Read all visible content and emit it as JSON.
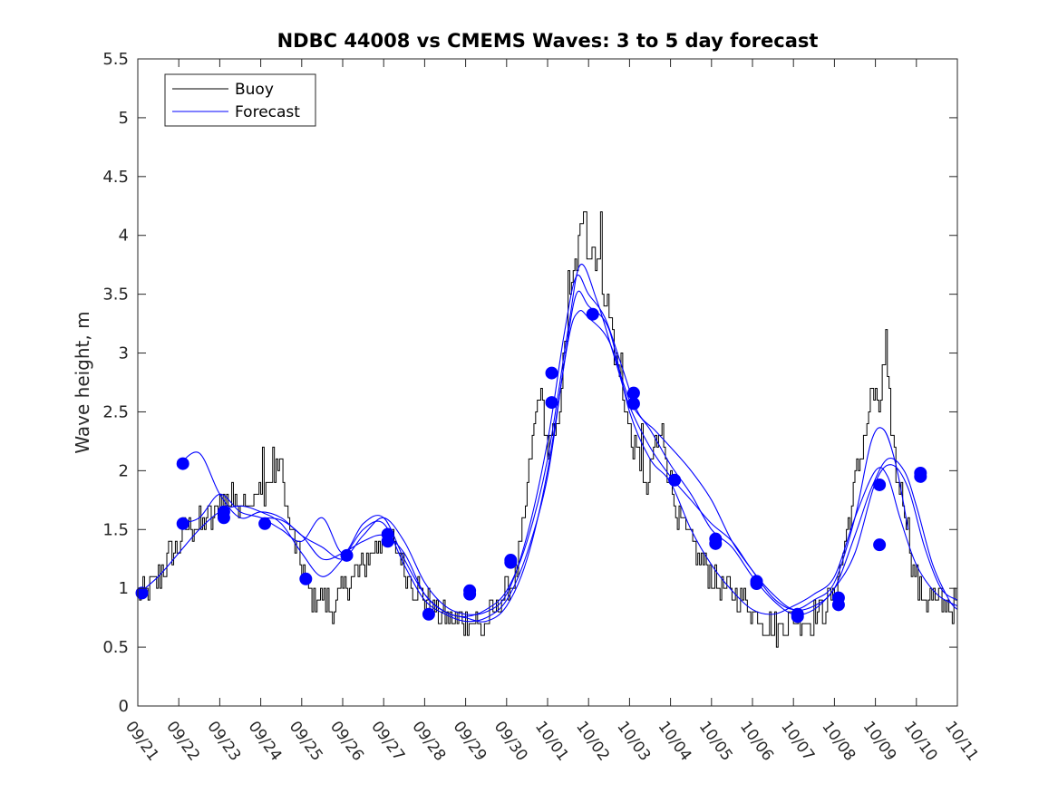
{
  "chart_data": {
    "type": "line",
    "title": "NDBC 44008 vs CMEMS Waves: 3 to 5 day forecast",
    "xlabel": "",
    "ylabel": "Wave height, m",
    "ylim": [
      0,
      5.5
    ],
    "xlim": [
      0,
      20
    ],
    "yticks": [
      "0",
      "0.5",
      "1",
      "1.5",
      "2",
      "2.5",
      "3",
      "3.5",
      "4",
      "4.5",
      "5",
      "5.5"
    ],
    "xticks": [
      "09/21",
      "09/22",
      "09/23",
      "09/24",
      "09/25",
      "09/26",
      "09/27",
      "09/28",
      "09/29",
      "09/30",
      "10/01",
      "10/02",
      "10/03",
      "10/04",
      "10/05",
      "10/06",
      "10/07",
      "10/08",
      "10/09",
      "10/10",
      "10/11"
    ],
    "legend": {
      "position": "top-left",
      "entries": [
        "Buoy",
        "Forecast"
      ]
    },
    "colors": {
      "buoy": "#000000",
      "forecast": "#0000ff",
      "axis": "#262626"
    },
    "buoy_anchors": [
      [
        0.0,
        1.0
      ],
      [
        0.2,
        0.95
      ],
      [
        0.5,
        1.1
      ],
      [
        0.8,
        1.3
      ],
      [
        1.2,
        1.5
      ],
      [
        1.5,
        1.55
      ],
      [
        1.8,
        1.6
      ],
      [
        2.0,
        1.75
      ],
      [
        2.3,
        1.7
      ],
      [
        2.6,
        1.8
      ],
      [
        2.8,
        1.75
      ],
      [
        3.1,
        1.85
      ],
      [
        3.3,
        1.9
      ],
      [
        3.45,
        2.1
      ],
      [
        3.55,
        1.9
      ],
      [
        3.7,
        1.5
      ],
      [
        3.9,
        1.3
      ],
      [
        4.2,
        0.95
      ],
      [
        4.5,
        0.9
      ],
      [
        4.8,
        0.85
      ],
      [
        5.1,
        1.05
      ],
      [
        5.4,
        1.15
      ],
      [
        5.7,
        1.3
      ],
      [
        6.0,
        1.45
      ],
      [
        6.3,
        1.35
      ],
      [
        6.6,
        1.1
      ],
      [
        6.9,
        0.95
      ],
      [
        7.2,
        0.85
      ],
      [
        7.5,
        0.75
      ],
      [
        7.8,
        0.7
      ],
      [
        8.1,
        0.75
      ],
      [
        8.4,
        0.65
      ],
      [
        8.7,
        0.8
      ],
      [
        9.0,
        1.0
      ],
      [
        9.2,
        1.1
      ],
      [
        9.4,
        1.5
      ],
      [
        9.6,
        2.2
      ],
      [
        9.8,
        2.7
      ],
      [
        10.0,
        2.2
      ],
      [
        10.2,
        2.3
      ],
      [
        10.4,
        3.0
      ],
      [
        10.6,
        3.6
      ],
      [
        10.8,
        4.0
      ],
      [
        11.0,
        3.9
      ],
      [
        11.2,
        3.85
      ],
      [
        11.4,
        3.5
      ],
      [
        11.6,
        3.1
      ],
      [
        11.8,
        2.7
      ],
      [
        12.0,
        2.3
      ],
      [
        12.2,
        2.1
      ],
      [
        12.4,
        1.8
      ],
      [
        12.6,
        2.2
      ],
      [
        12.8,
        2.3
      ],
      [
        13.0,
        1.9
      ],
      [
        13.2,
        1.6
      ],
      [
        13.4,
        1.45
      ],
      [
        13.6,
        1.3
      ],
      [
        13.8,
        1.2
      ],
      [
        14.0,
        1.1
      ],
      [
        14.3,
        1.0
      ],
      [
        14.6,
        0.95
      ],
      [
        14.9,
        0.85
      ],
      [
        15.2,
        0.75
      ],
      [
        15.5,
        0.65
      ],
      [
        15.8,
        0.7
      ],
      [
        16.1,
        0.75
      ],
      [
        16.4,
        0.75
      ],
      [
        16.7,
        0.8
      ],
      [
        17.0,
        0.95
      ],
      [
        17.2,
        1.3
      ],
      [
        17.4,
        1.7
      ],
      [
        17.6,
        2.1
      ],
      [
        17.8,
        2.4
      ],
      [
        18.0,
        2.6
      ],
      [
        18.1,
        2.5
      ],
      [
        18.2,
        2.9
      ],
      [
        18.35,
        2.5
      ],
      [
        18.5,
        2.0
      ],
      [
        18.7,
        1.7
      ],
      [
        18.9,
        1.2
      ],
      [
        19.1,
        0.95
      ],
      [
        19.4,
        0.9
      ],
      [
        20.0,
        0.85
      ]
    ],
    "buoy_peaks": [
      [
        1.3,
        1.6
      ],
      [
        2.3,
        1.95
      ],
      [
        3.05,
        2.1
      ],
      [
        3.3,
        2.3
      ],
      [
        10.5,
        3.7
      ],
      [
        10.9,
        4.3
      ],
      [
        11.3,
        4.1
      ],
      [
        11.8,
        3.0
      ],
      [
        12.3,
        2.5
      ],
      [
        17.9,
        2.7
      ],
      [
        18.25,
        3.1
      ]
    ],
    "buoy_noise": 0.13,
    "forecast_series": [
      {
        "name": "Forecast",
        "points": [
          [
            0.0,
            0.95
          ],
          [
            0.5,
            1.1
          ],
          [
            1.0,
            1.3
          ],
          [
            1.5,
            1.5
          ],
          [
            2.0,
            1.65
          ],
          [
            2.5,
            1.7
          ],
          [
            3.0,
            1.65
          ],
          [
            3.5,
            1.55
          ],
          [
            4.0,
            1.3
          ],
          [
            4.5,
            1.1
          ],
          [
            5.0,
            1.25
          ],
          [
            5.5,
            1.5
          ],
          [
            6.0,
            1.55
          ],
          [
            6.5,
            1.2
          ],
          [
            7.0,
            0.9
          ],
          [
            7.5,
            0.78
          ],
          [
            8.0,
            0.72
          ],
          [
            8.5,
            0.75
          ],
          [
            9.0,
            0.9
          ],
          [
            9.5,
            1.3
          ],
          [
            10.0,
            1.95
          ],
          [
            10.4,
            2.9
          ],
          [
            10.7,
            3.5
          ],
          [
            11.0,
            3.4
          ],
          [
            11.5,
            3.2
          ],
          [
            12.0,
            2.5
          ],
          [
            12.5,
            2.1
          ],
          [
            13.0,
            1.9
          ],
          [
            13.5,
            1.5
          ],
          [
            14.0,
            1.2
          ],
          [
            14.5,
            0.98
          ],
          [
            15.0,
            0.82
          ],
          [
            15.5,
            0.78
          ],
          [
            16.0,
            0.85
          ],
          [
            16.5,
            0.95
          ],
          [
            17.0,
            1.1
          ],
          [
            17.5,
            1.6
          ],
          [
            18.0,
            2.0
          ],
          [
            18.3,
            1.95
          ],
          [
            18.6,
            1.6
          ],
          [
            19.0,
            1.2
          ],
          [
            19.5,
            0.95
          ],
          [
            20.0,
            0.85
          ]
        ]
      },
      {
        "name": "Forecast",
        "points": [
          [
            1.0,
            1.55
          ],
          [
            1.5,
            1.6
          ],
          [
            2.0,
            1.8
          ],
          [
            2.5,
            1.65
          ],
          [
            3.0,
            1.6
          ],
          [
            3.5,
            1.5
          ],
          [
            4.0,
            1.4
          ],
          [
            4.5,
            1.6
          ],
          [
            5.0,
            1.3
          ],
          [
            5.5,
            1.55
          ],
          [
            6.0,
            1.6
          ],
          [
            6.5,
            1.25
          ],
          [
            7.0,
            0.95
          ],
          [
            7.5,
            0.8
          ],
          [
            8.0,
            0.75
          ],
          [
            8.5,
            0.72
          ],
          [
            9.0,
            0.85
          ],
          [
            9.5,
            1.25
          ],
          [
            10.0,
            2.0
          ],
          [
            10.5,
            3.1
          ],
          [
            10.75,
            3.35
          ],
          [
            11.0,
            3.3
          ],
          [
            11.5,
            3.1
          ],
          [
            12.0,
            2.6
          ],
          [
            12.5,
            2.35
          ],
          [
            13.0,
            2.05
          ],
          [
            13.5,
            1.8
          ],
          [
            14.0,
            1.5
          ],
          [
            14.5,
            1.35
          ],
          [
            15.0,
            1.1
          ],
          [
            15.5,
            0.9
          ],
          [
            16.0,
            0.78
          ],
          [
            16.5,
            0.82
          ],
          [
            17.0,
            1.0
          ],
          [
            17.5,
            1.3
          ],
          [
            18.0,
            1.9
          ],
          [
            18.4,
            2.05
          ],
          [
            18.8,
            1.85
          ],
          [
            19.2,
            1.35
          ],
          [
            19.6,
            1.0
          ],
          [
            20.0,
            0.9
          ]
        ]
      },
      {
        "name": "Forecast",
        "points": [
          [
            1.0,
            2.05
          ],
          [
            1.5,
            2.15
          ],
          [
            2.0,
            1.8
          ],
          [
            2.5,
            1.6
          ],
          [
            3.0,
            1.65
          ],
          [
            3.5,
            1.6
          ],
          [
            4.0,
            1.45
          ],
          [
            4.5,
            1.35
          ],
          [
            5.0,
            1.25
          ],
          [
            5.5,
            1.45
          ],
          [
            6.0,
            1.6
          ],
          [
            6.5,
            1.4
          ],
          [
            7.0,
            1.05
          ],
          [
            7.5,
            0.85
          ],
          [
            8.0,
            0.78
          ],
          [
            8.5,
            0.8
          ],
          [
            9.0,
            0.95
          ],
          [
            9.5,
            1.45
          ],
          [
            10.0,
            2.25
          ],
          [
            10.4,
            3.15
          ],
          [
            10.7,
            3.65
          ],
          [
            11.0,
            3.5
          ],
          [
            11.4,
            3.3
          ],
          [
            11.8,
            2.9
          ],
          [
            12.2,
            2.5
          ],
          [
            12.6,
            2.35
          ],
          [
            13.0,
            2.2
          ],
          [
            13.5,
            2.0
          ],
          [
            14.0,
            1.75
          ],
          [
            14.5,
            1.4
          ],
          [
            15.0,
            1.15
          ],
          [
            15.5,
            0.92
          ],
          [
            16.0,
            0.82
          ],
          [
            16.5,
            0.9
          ],
          [
            17.0,
            1.05
          ],
          [
            17.5,
            1.6
          ],
          [
            17.9,
            2.25
          ],
          [
            18.2,
            2.35
          ],
          [
            18.5,
            2.05
          ],
          [
            18.8,
            1.5
          ]
        ]
      },
      {
        "name": "Forecast",
        "points": [
          [
            3.0,
            1.6
          ],
          [
            3.5,
            1.58
          ],
          [
            4.0,
            1.45
          ],
          [
            4.5,
            1.25
          ],
          [
            5.0,
            1.3
          ],
          [
            5.5,
            1.4
          ],
          [
            6.0,
            1.45
          ],
          [
            6.5,
            1.3
          ],
          [
            7.0,
            0.95
          ],
          [
            7.5,
            0.8
          ],
          [
            8.0,
            0.76
          ],
          [
            8.5,
            0.82
          ],
          [
            9.0,
            0.98
          ],
          [
            9.5,
            1.4
          ],
          [
            10.0,
            2.1
          ],
          [
            10.5,
            3.2
          ],
          [
            10.8,
            3.75
          ],
          [
            11.2,
            3.45
          ],
          [
            11.6,
            3.0
          ],
          [
            12.0,
            2.55
          ],
          [
            12.5,
            2.2
          ],
          [
            13.0,
            1.95
          ],
          [
            13.5,
            1.75
          ],
          [
            14.0,
            1.55
          ],
          [
            14.5,
            1.4
          ],
          [
            15.0,
            1.15
          ],
          [
            15.5,
            0.95
          ],
          [
            16.0,
            0.82
          ],
          [
            16.5,
            0.85
          ],
          [
            17.0,
            1.0
          ],
          [
            17.5,
            1.45
          ],
          [
            17.9,
            1.85
          ],
          [
            18.3,
            2.1
          ],
          [
            18.7,
            2.0
          ],
          [
            19.0,
            1.7
          ],
          [
            19.4,
            1.2
          ],
          [
            19.8,
            0.9
          ],
          [
            20.0,
            0.82
          ]
        ]
      }
    ],
    "forecast_markers": [
      [
        0.1,
        0.96
      ],
      [
        1.1,
        2.06
      ],
      [
        1.1,
        1.55
      ],
      [
        2.1,
        1.65
      ],
      [
        2.1,
        1.6
      ],
      [
        3.1,
        1.55
      ],
      [
        4.1,
        1.08
      ],
      [
        5.1,
        1.28
      ],
      [
        6.1,
        1.46
      ],
      [
        6.1,
        1.4
      ],
      [
        7.1,
        0.78
      ],
      [
        8.1,
        0.98
      ],
      [
        8.1,
        0.95
      ],
      [
        9.1,
        1.22
      ],
      [
        9.1,
        1.24
      ],
      [
        10.1,
        2.83
      ],
      [
        10.1,
        2.58
      ],
      [
        11.1,
        3.33
      ],
      [
        12.1,
        2.66
      ],
      [
        12.1,
        2.57
      ],
      [
        13.1,
        1.92
      ],
      [
        14.1,
        1.42
      ],
      [
        14.1,
        1.38
      ],
      [
        15.1,
        1.06
      ],
      [
        15.1,
        1.04
      ],
      [
        16.1,
        0.78
      ],
      [
        16.1,
        0.76
      ],
      [
        17.1,
        0.92
      ],
      [
        17.1,
        0.86
      ],
      [
        18.1,
        1.88
      ],
      [
        18.1,
        1.37
      ],
      [
        19.1,
        1.98
      ],
      [
        19.1,
        1.95
      ]
    ]
  }
}
